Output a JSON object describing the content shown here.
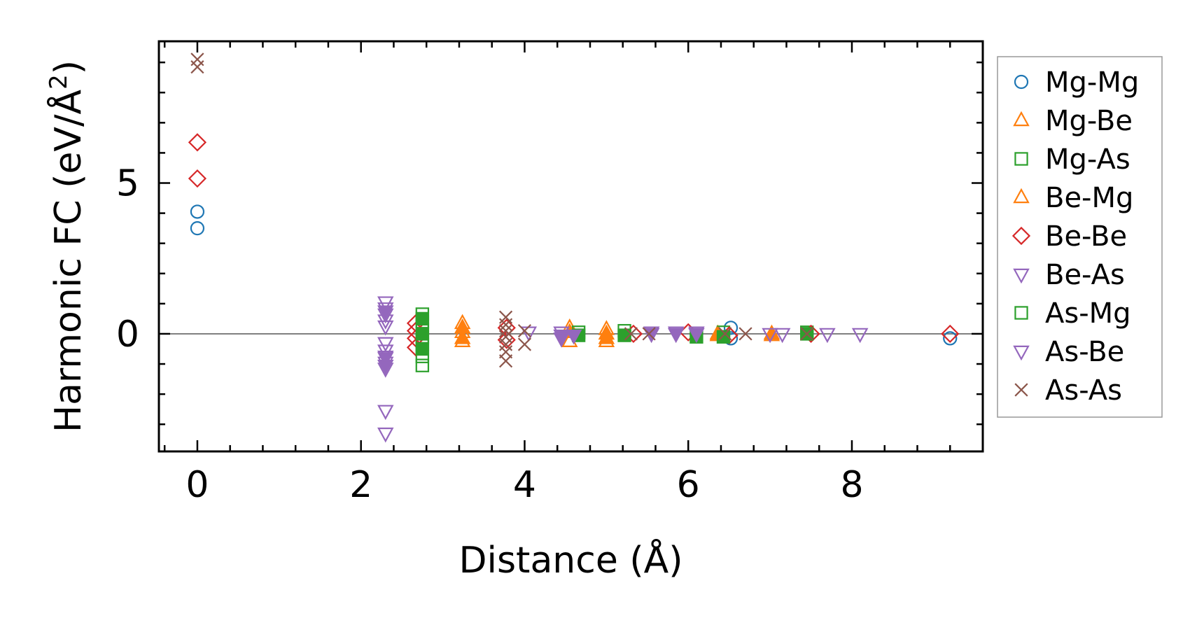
{
  "chart_data": {
    "type": "scatter",
    "title": "",
    "xlabel": "Distance (Å)",
    "ylabel_main": "Harmonic FC (eV/Å",
    "ylabel_sup": "2",
    "ylabel_close": ")",
    "xlim": [
      -0.47,
      9.6
    ],
    "ylim": [
      -3.9,
      9.7
    ],
    "xticks": [
      0,
      2,
      4,
      6,
      8
    ],
    "xtick_labels": [
      "0",
      "2",
      "4",
      "6",
      "8"
    ],
    "yticks": [
      0,
      5
    ],
    "ytick_labels": [
      "0",
      "5"
    ],
    "zero_line": true,
    "grid": false,
    "legend_position": "outside-right",
    "series": [
      {
        "name": "Mg-Mg",
        "marker": "circle",
        "color": "#1f77b4",
        "filled": false,
        "points": [
          [
            0,
            4.05
          ],
          [
            0,
            3.5
          ],
          [
            6.52,
            0.2
          ],
          [
            6.52,
            -0.15
          ],
          [
            9.2,
            -0.15
          ]
        ]
      },
      {
        "name": "Mg-Be",
        "marker": "triangle-up",
        "color": "#ff7f0e",
        "filled": false,
        "points": [
          [
            3.24,
            0.35
          ],
          [
            3.24,
            0.05
          ],
          [
            3.24,
            -0.25
          ],
          [
            4.55,
            0.2
          ],
          [
            4.55,
            -0.25
          ],
          [
            5.0,
            0.15
          ],
          [
            5.0,
            -0.25
          ],
          [
            6.36,
            0.0
          ],
          [
            7.02,
            -0.05
          ]
        ]
      },
      {
        "name": "Mg-As",
        "marker": "square",
        "color": "#2ca02c",
        "filled": false,
        "points": [
          [
            2.75,
            0.65
          ],
          [
            2.75,
            0.4
          ],
          [
            2.75,
            0.15
          ],
          [
            2.75,
            -0.1
          ],
          [
            2.75,
            -0.35
          ],
          [
            2.75,
            -0.75
          ],
          [
            2.75,
            -1.05
          ],
          [
            4.66,
            0.05
          ],
          [
            5.22,
            0.1
          ],
          [
            6.43,
            0.05
          ],
          [
            7.45,
            0.05
          ]
        ]
      },
      {
        "name": "Be-Mg",
        "marker": "triangle-up",
        "color": "#ff7f0e",
        "filled": true,
        "points": [
          [
            3.24,
            0.2
          ],
          [
            3.24,
            -0.15
          ],
          [
            4.55,
            0.05
          ],
          [
            5.0,
            0.0
          ],
          [
            5.0,
            -0.15
          ],
          [
            6.36,
            -0.05
          ],
          [
            7.02,
            0.0
          ]
        ]
      },
      {
        "name": "Be-Be",
        "marker": "diamond",
        "color": "#d62728",
        "filled": false,
        "points": [
          [
            0,
            6.35
          ],
          [
            0,
            5.15
          ],
          [
            2.67,
            0.35
          ],
          [
            2.67,
            0.1
          ],
          [
            2.67,
            -0.15
          ],
          [
            2.67,
            -0.45
          ],
          [
            3.78,
            0.2
          ],
          [
            3.78,
            -0.2
          ],
          [
            5.33,
            0.0
          ],
          [
            6.0,
            0.05
          ],
          [
            6.5,
            -0.05
          ],
          [
            7.5,
            0.0
          ],
          [
            9.2,
            0.0
          ]
        ]
      },
      {
        "name": "Be-As",
        "marker": "triangle-down",
        "color": "#9467bd",
        "filled": false,
        "points": [
          [
            2.3,
            1.05
          ],
          [
            2.3,
            0.85
          ],
          [
            2.3,
            0.65
          ],
          [
            2.3,
            0.45
          ],
          [
            2.3,
            0.25
          ],
          [
            2.3,
            -0.3
          ],
          [
            2.3,
            -0.55
          ],
          [
            2.3,
            -0.75
          ],
          [
            2.3,
            -0.95
          ],
          [
            2.3,
            -1.15
          ],
          [
            2.3,
            -2.55
          ],
          [
            2.3,
            -3.3
          ],
          [
            4.05,
            0.05
          ],
          [
            4.45,
            0.05
          ],
          [
            5.55,
            0.05
          ],
          [
            5.85,
            0.05
          ],
          [
            6.1,
            0.05
          ],
          [
            7.0,
            0.0
          ],
          [
            7.15,
            0.0
          ],
          [
            7.7,
            0.0
          ],
          [
            8.1,
            0.0
          ]
        ]
      },
      {
        "name": "As-Mg",
        "marker": "square",
        "color": "#2ca02c",
        "filled": true,
        "points": [
          [
            2.75,
            0.5
          ],
          [
            2.75,
            0.0
          ],
          [
            2.75,
            -0.5
          ],
          [
            4.66,
            -0.05
          ],
          [
            5.22,
            -0.05
          ],
          [
            6.1,
            -0.1
          ],
          [
            6.43,
            -0.1
          ],
          [
            7.45,
            0.0
          ]
        ]
      },
      {
        "name": "As-Be",
        "marker": "triangle-down",
        "color": "#9467bd",
        "filled": true,
        "points": [
          [
            2.3,
            0.75
          ],
          [
            2.3,
            -0.8
          ],
          [
            2.3,
            -1.05
          ],
          [
            4.45,
            -0.05
          ],
          [
            4.45,
            -0.15
          ],
          [
            4.6,
            -0.05
          ],
          [
            5.55,
            0.0
          ],
          [
            5.85,
            0.0
          ],
          [
            6.1,
            0.0
          ]
        ]
      },
      {
        "name": "As-As",
        "marker": "x",
        "color": "#8c564b",
        "filled": false,
        "points": [
          [
            0,
            9.1
          ],
          [
            0,
            8.85
          ],
          [
            3.77,
            0.55
          ],
          [
            3.77,
            0.3
          ],
          [
            3.77,
            0.1
          ],
          [
            3.77,
            -0.1
          ],
          [
            3.77,
            -0.35
          ],
          [
            3.77,
            -0.6
          ],
          [
            3.77,
            -0.9
          ],
          [
            4.0,
            0.1
          ],
          [
            4.0,
            -0.35
          ],
          [
            5.3,
            0.0
          ],
          [
            5.52,
            0.0
          ],
          [
            6.45,
            0.0
          ],
          [
            6.7,
            0.0
          ],
          [
            7.45,
            0.0
          ]
        ]
      }
    ]
  }
}
